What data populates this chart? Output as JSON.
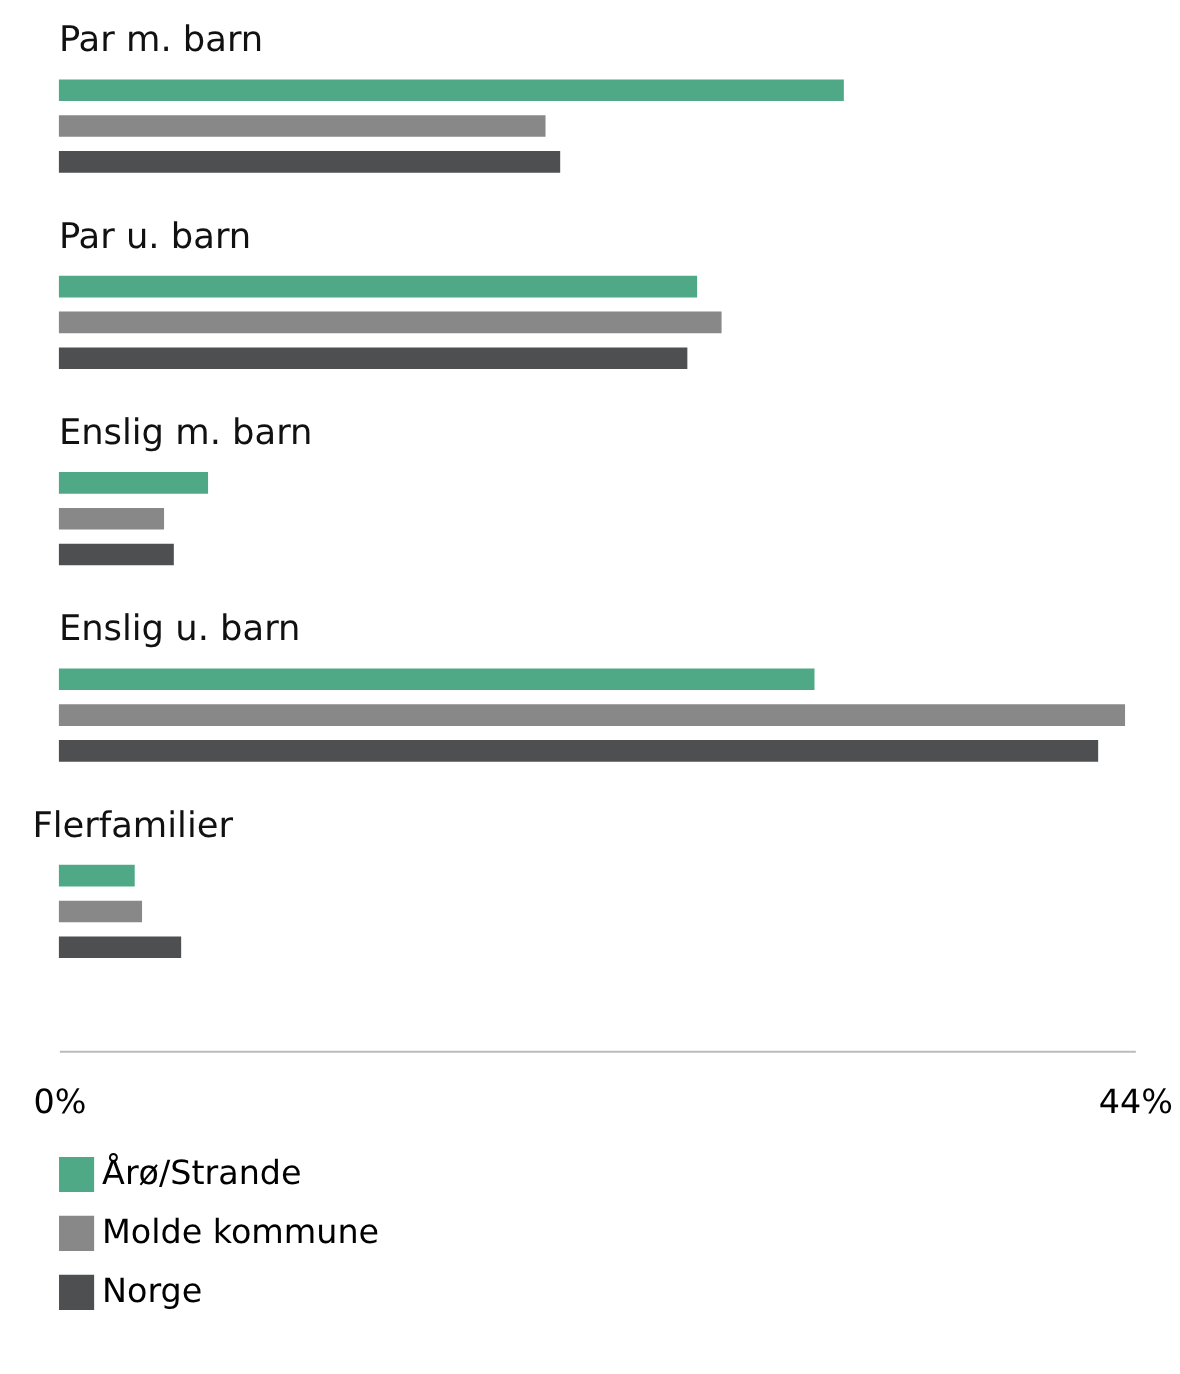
{
  "chart_data": {
    "type": "bar",
    "orientation": "horizontal",
    "categories": [
      "Par m. barn",
      "Par u. barn",
      "Enslig m. barn",
      "Enslig u. barn",
      "Flerfamilier"
    ],
    "series": [
      {
        "name": "Årø/Strande",
        "color": "#4fa987",
        "values": [
          32.1,
          26.1,
          6.1,
          30.9,
          3.1
        ]
      },
      {
        "name": "Molde kommune",
        "color": "#888888",
        "values": [
          19.9,
          27.1,
          4.3,
          43.6,
          3.4
        ]
      },
      {
        "name": "Norge",
        "color": "#4d4f51",
        "values": [
          20.5,
          25.7,
          4.7,
          42.5,
          5.0
        ]
      }
    ],
    "xlim": [
      0,
      44
    ],
    "xticks": [
      {
        "value": 0,
        "label": "0%"
      },
      {
        "value": 44,
        "label": "44%"
      }
    ],
    "legend": "bottom left"
  }
}
